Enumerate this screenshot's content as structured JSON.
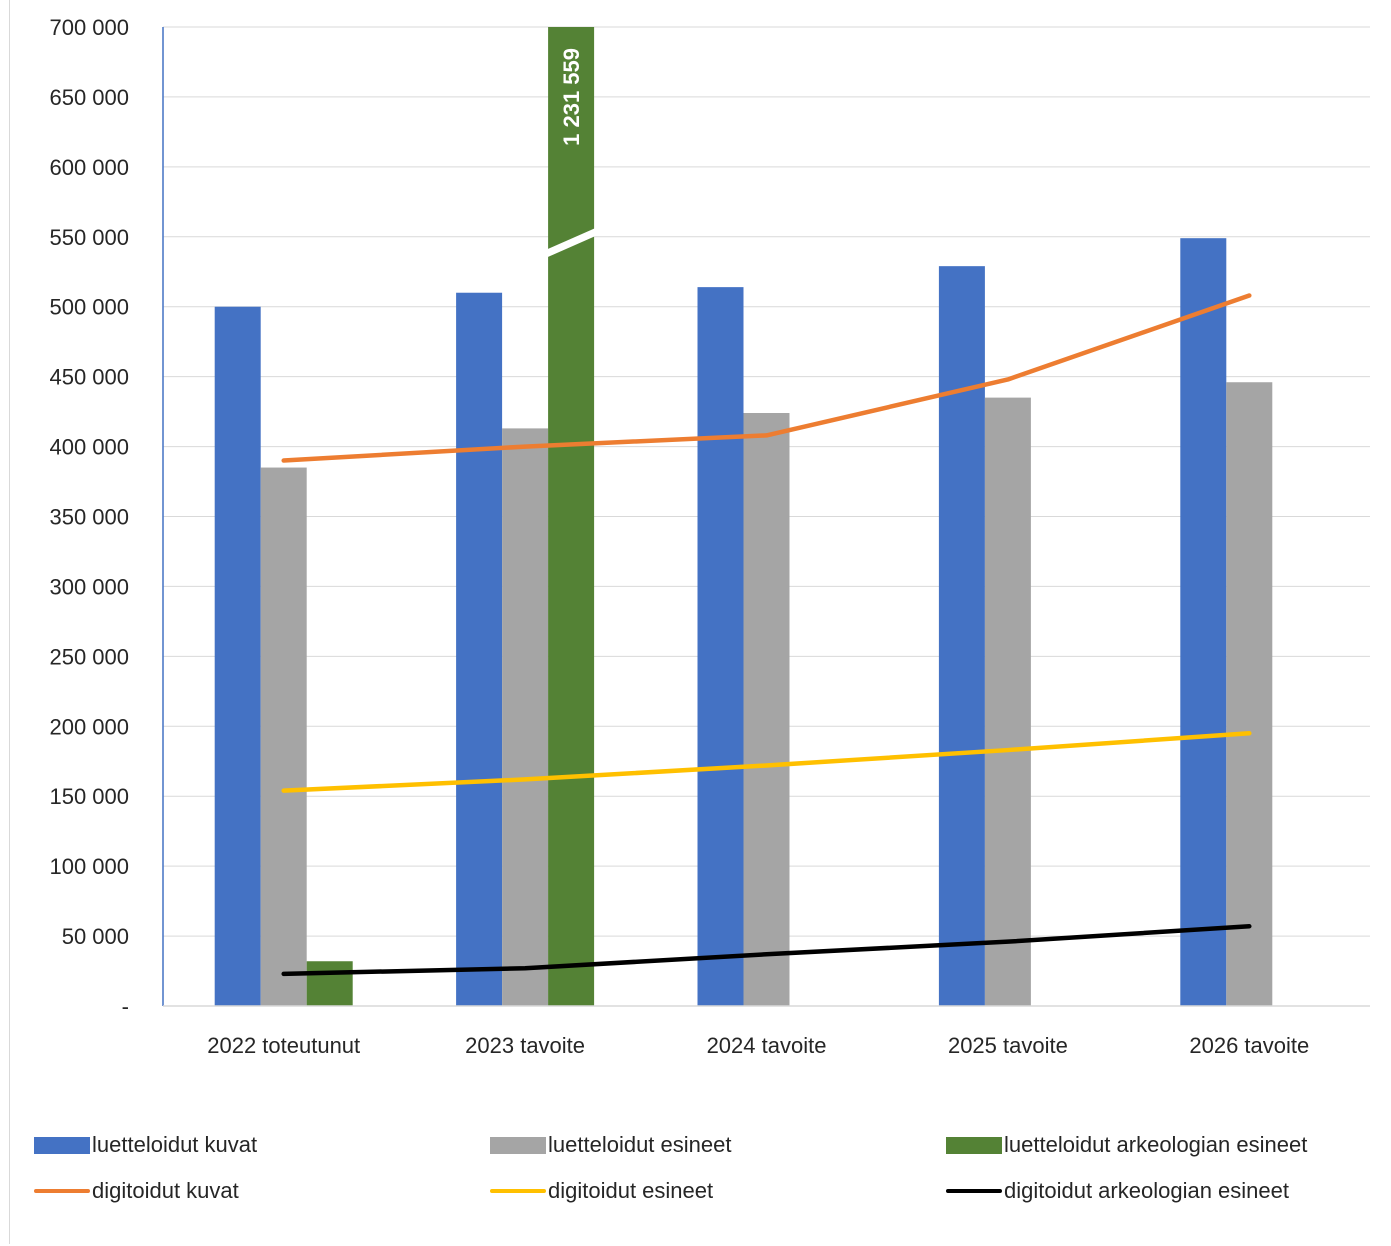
{
  "chart_data": {
    "type": "bar",
    "title": "",
    "xlabel": "",
    "ylabel": "",
    "ylim": [
      0,
      700000
    ],
    "y_ticks": [
      {
        "value": 0,
        "label": "-"
      },
      {
        "value": 50000,
        "label": "50 000"
      },
      {
        "value": 100000,
        "label": "100 000"
      },
      {
        "value": 150000,
        "label": "150 000"
      },
      {
        "value": 200000,
        "label": "200 000"
      },
      {
        "value": 250000,
        "label": "250 000"
      },
      {
        "value": 300000,
        "label": "300 000"
      },
      {
        "value": 350000,
        "label": "350 000"
      },
      {
        "value": 400000,
        "label": "400 000"
      },
      {
        "value": 450000,
        "label": "450 000"
      },
      {
        "value": 500000,
        "label": "500 000"
      },
      {
        "value": 550000,
        "label": "550 000"
      },
      {
        "value": 600000,
        "label": "600 000"
      },
      {
        "value": 650000,
        "label": "650 000"
      },
      {
        "value": 700000,
        "label": "700 000"
      }
    ],
    "grid": true,
    "legend_position": "bottom",
    "categories": [
      "2022 toteutunut",
      "2023 tavoite",
      "2024 tavoite",
      "2025 tavoite",
      "2026 tavoite"
    ],
    "bar_series": [
      {
        "name": "luetteloidut kuvat",
        "color": "#4472C4",
        "values": [
          500000,
          510000,
          514000,
          529000,
          549000
        ]
      },
      {
        "name": "luetteloidut esineet",
        "color": "#A5A5A5",
        "values": [
          385000,
          413000,
          424000,
          435000,
          446000
        ]
      },
      {
        "name": "luetteloidut arkeologian esineet",
        "color": "#548235",
        "values": [
          32000,
          1231559,
          null,
          null,
          null
        ]
      }
    ],
    "line_series": [
      {
        "name": "digitoidut kuvat",
        "color": "#ED7D31",
        "values": [
          390000,
          400000,
          408000,
          448000,
          508000
        ]
      },
      {
        "name": "digitoidut esineet",
        "color": "#FFC000",
        "values": [
          154000,
          162000,
          172000,
          183000,
          195000
        ]
      },
      {
        "name": "digitoidut arkeologian esineet",
        "color": "#000000",
        "values": [
          23000,
          27000,
          37000,
          46000,
          57000
        ]
      }
    ],
    "annotations": [
      {
        "series": "luetteloidut arkeologian esineet",
        "category": "2023 tavoite",
        "text": "1 231 559",
        "axis_break": true
      }
    ]
  }
}
